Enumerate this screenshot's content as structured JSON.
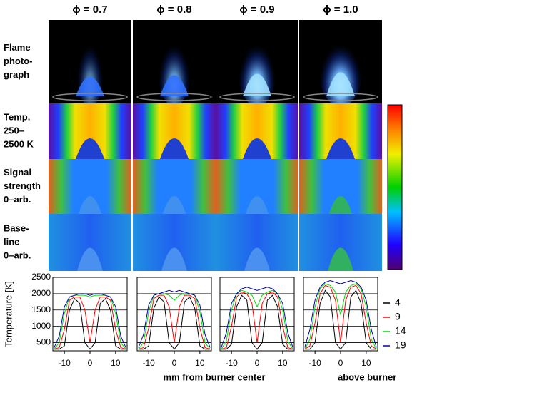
{
  "column_labels": [
    "ϕ = 0.7",
    "ϕ = 0.8",
    "ϕ = 0.9",
    "ϕ = 1.0"
  ],
  "row_labels": [
    [
      "Flame",
      "photo-",
      "graph"
    ],
    [
      "Temp.",
      "250–",
      "2500 K"
    ],
    [
      "Signal",
      "strength",
      "0–arb."
    ],
    [
      "Base-",
      "line",
      "0–arb."
    ]
  ],
  "x_label": "mm from burner center",
  "legend_note": "above burner",
  "chart_data": [
    {
      "type": "line",
      "y_label": "Temperature [K]",
      "x": [
        -14,
        -12,
        -10,
        -8,
        -6,
        -4,
        -2,
        0,
        2,
        4,
        6,
        8,
        10,
        12,
        14
      ],
      "xlim": [
        -14.5,
        14.5
      ],
      "xticks": [
        -10,
        0,
        10
      ],
      "ylim": [
        250,
        2500
      ],
      "yticks": [
        500,
        1000,
        1500,
        2000,
        2500
      ],
      "grid": true,
      "series": [
        {
          "name": "4",
          "color": "#000000",
          "values": [
            300,
            300,
            400,
            1500,
            1850,
            1700,
            500,
            300,
            500,
            1700,
            1850,
            1500,
            400,
            300,
            300
          ]
        },
        {
          "name": "9",
          "color": "#ff0000",
          "values": [
            300,
            350,
            900,
            1800,
            1900,
            1900,
            1500,
            500,
            1500,
            1900,
            1900,
            1800,
            900,
            350,
            300
          ]
        },
        {
          "name": "14",
          "color": "#00dd00",
          "values": [
            300,
            500,
            1400,
            1900,
            1950,
            1950,
            1950,
            1900,
            1950,
            1950,
            1950,
            1900,
            1400,
            500,
            300
          ]
        },
        {
          "name": "19",
          "color": "#0000aa",
          "values": [
            350,
            700,
            1600,
            1900,
            1950,
            2000,
            2000,
            1950,
            2000,
            2000,
            1950,
            1900,
            1600,
            700,
            350
          ]
        }
      ]
    },
    {
      "type": "line",
      "x": [
        -14,
        -12,
        -10,
        -8,
        -6,
        -4,
        -2,
        0,
        2,
        4,
        6,
        8,
        10,
        12,
        14
      ],
      "xlim": [
        -14.5,
        14.5
      ],
      "xticks": [
        -10,
        0,
        10
      ],
      "ylim": [
        250,
        2500
      ],
      "yticks": [
        500,
        1000,
        1500,
        2000,
        2500
      ],
      "grid": true,
      "series": [
        {
          "name": "4",
          "color": "#000000",
          "values": [
            300,
            300,
            400,
            1550,
            1900,
            1750,
            500,
            300,
            500,
            1750,
            1900,
            1550,
            400,
            300,
            300
          ]
        },
        {
          "name": "9",
          "color": "#ff0000",
          "values": [
            300,
            350,
            950,
            1850,
            1950,
            1950,
            1600,
            500,
            1600,
            1950,
            1950,
            1850,
            950,
            350,
            300
          ]
        },
        {
          "name": "14",
          "color": "#00dd00",
          "values": [
            300,
            500,
            1450,
            1950,
            2000,
            2000,
            1950,
            1800,
            1950,
            2000,
            2000,
            1950,
            1450,
            500,
            300
          ]
        },
        {
          "name": "19",
          "color": "#0000aa",
          "values": [
            350,
            750,
            1650,
            1950,
            2000,
            2050,
            2100,
            2050,
            2100,
            2050,
            2000,
            1950,
            1650,
            750,
            350
          ]
        }
      ]
    },
    {
      "type": "line",
      "x": [
        -14,
        -12,
        -10,
        -8,
        -6,
        -4,
        -2,
        0,
        2,
        4,
        6,
        8,
        10,
        12,
        14
      ],
      "xlim": [
        -14.5,
        14.5
      ],
      "xticks": [
        -10,
        0,
        10
      ],
      "ylim": [
        250,
        2500
      ],
      "yticks": [
        500,
        1000,
        1500,
        2000,
        2500
      ],
      "grid": true,
      "series": [
        {
          "name": "4",
          "color": "#000000",
          "values": [
            300,
            300,
            450,
            1600,
            1950,
            1800,
            500,
            300,
            500,
            1800,
            1950,
            1600,
            450,
            300,
            300
          ]
        },
        {
          "name": "9",
          "color": "#ff0000",
          "values": [
            300,
            350,
            1000,
            1900,
            2050,
            2000,
            1700,
            500,
            1700,
            2000,
            2050,
            1900,
            1000,
            350,
            300
          ]
        },
        {
          "name": "14",
          "color": "#00dd00",
          "values": [
            300,
            550,
            1500,
            2000,
            2100,
            2050,
            1950,
            1600,
            1950,
            2050,
            2100,
            2000,
            1500,
            550,
            300
          ]
        },
        {
          "name": "19",
          "color": "#0000aa",
          "values": [
            350,
            800,
            1700,
            2000,
            2150,
            2200,
            2150,
            2100,
            2150,
            2200,
            2150,
            2000,
            1700,
            800,
            350
          ]
        }
      ]
    },
    {
      "type": "line",
      "x": [
        -14,
        -12,
        -10,
        -8,
        -6,
        -4,
        -2,
        0,
        2,
        4,
        6,
        8,
        10,
        12,
        14
      ],
      "xlim": [
        -14.5,
        14.5
      ],
      "xticks": [
        -10,
        0,
        10
      ],
      "ylim": [
        250,
        2500
      ],
      "yticks": [
        500,
        1000,
        1500,
        2000,
        2500
      ],
      "grid": true,
      "series": [
        {
          "name": "4",
          "color": "#000000",
          "values": [
            300,
            300,
            500,
            1700,
            2100,
            1900,
            500,
            300,
            500,
            1900,
            2100,
            1700,
            500,
            300,
            300
          ]
        },
        {
          "name": "9",
          "color": "#ff0000",
          "values": [
            300,
            400,
            1100,
            2000,
            2250,
            2200,
            1800,
            500,
            1800,
            2200,
            2250,
            2000,
            1100,
            400,
            300
          ]
        },
        {
          "name": "14",
          "color": "#00dd00",
          "values": [
            300,
            600,
            1600,
            2150,
            2300,
            2250,
            2050,
            1350,
            2050,
            2250,
            2300,
            2150,
            1600,
            600,
            300
          ]
        },
        {
          "name": "19",
          "color": "#0000aa",
          "values": [
            350,
            900,
            1800,
            2200,
            2350,
            2400,
            2350,
            2300,
            2350,
            2400,
            2350,
            2200,
            1800,
            900,
            350
          ]
        }
      ]
    }
  ]
}
